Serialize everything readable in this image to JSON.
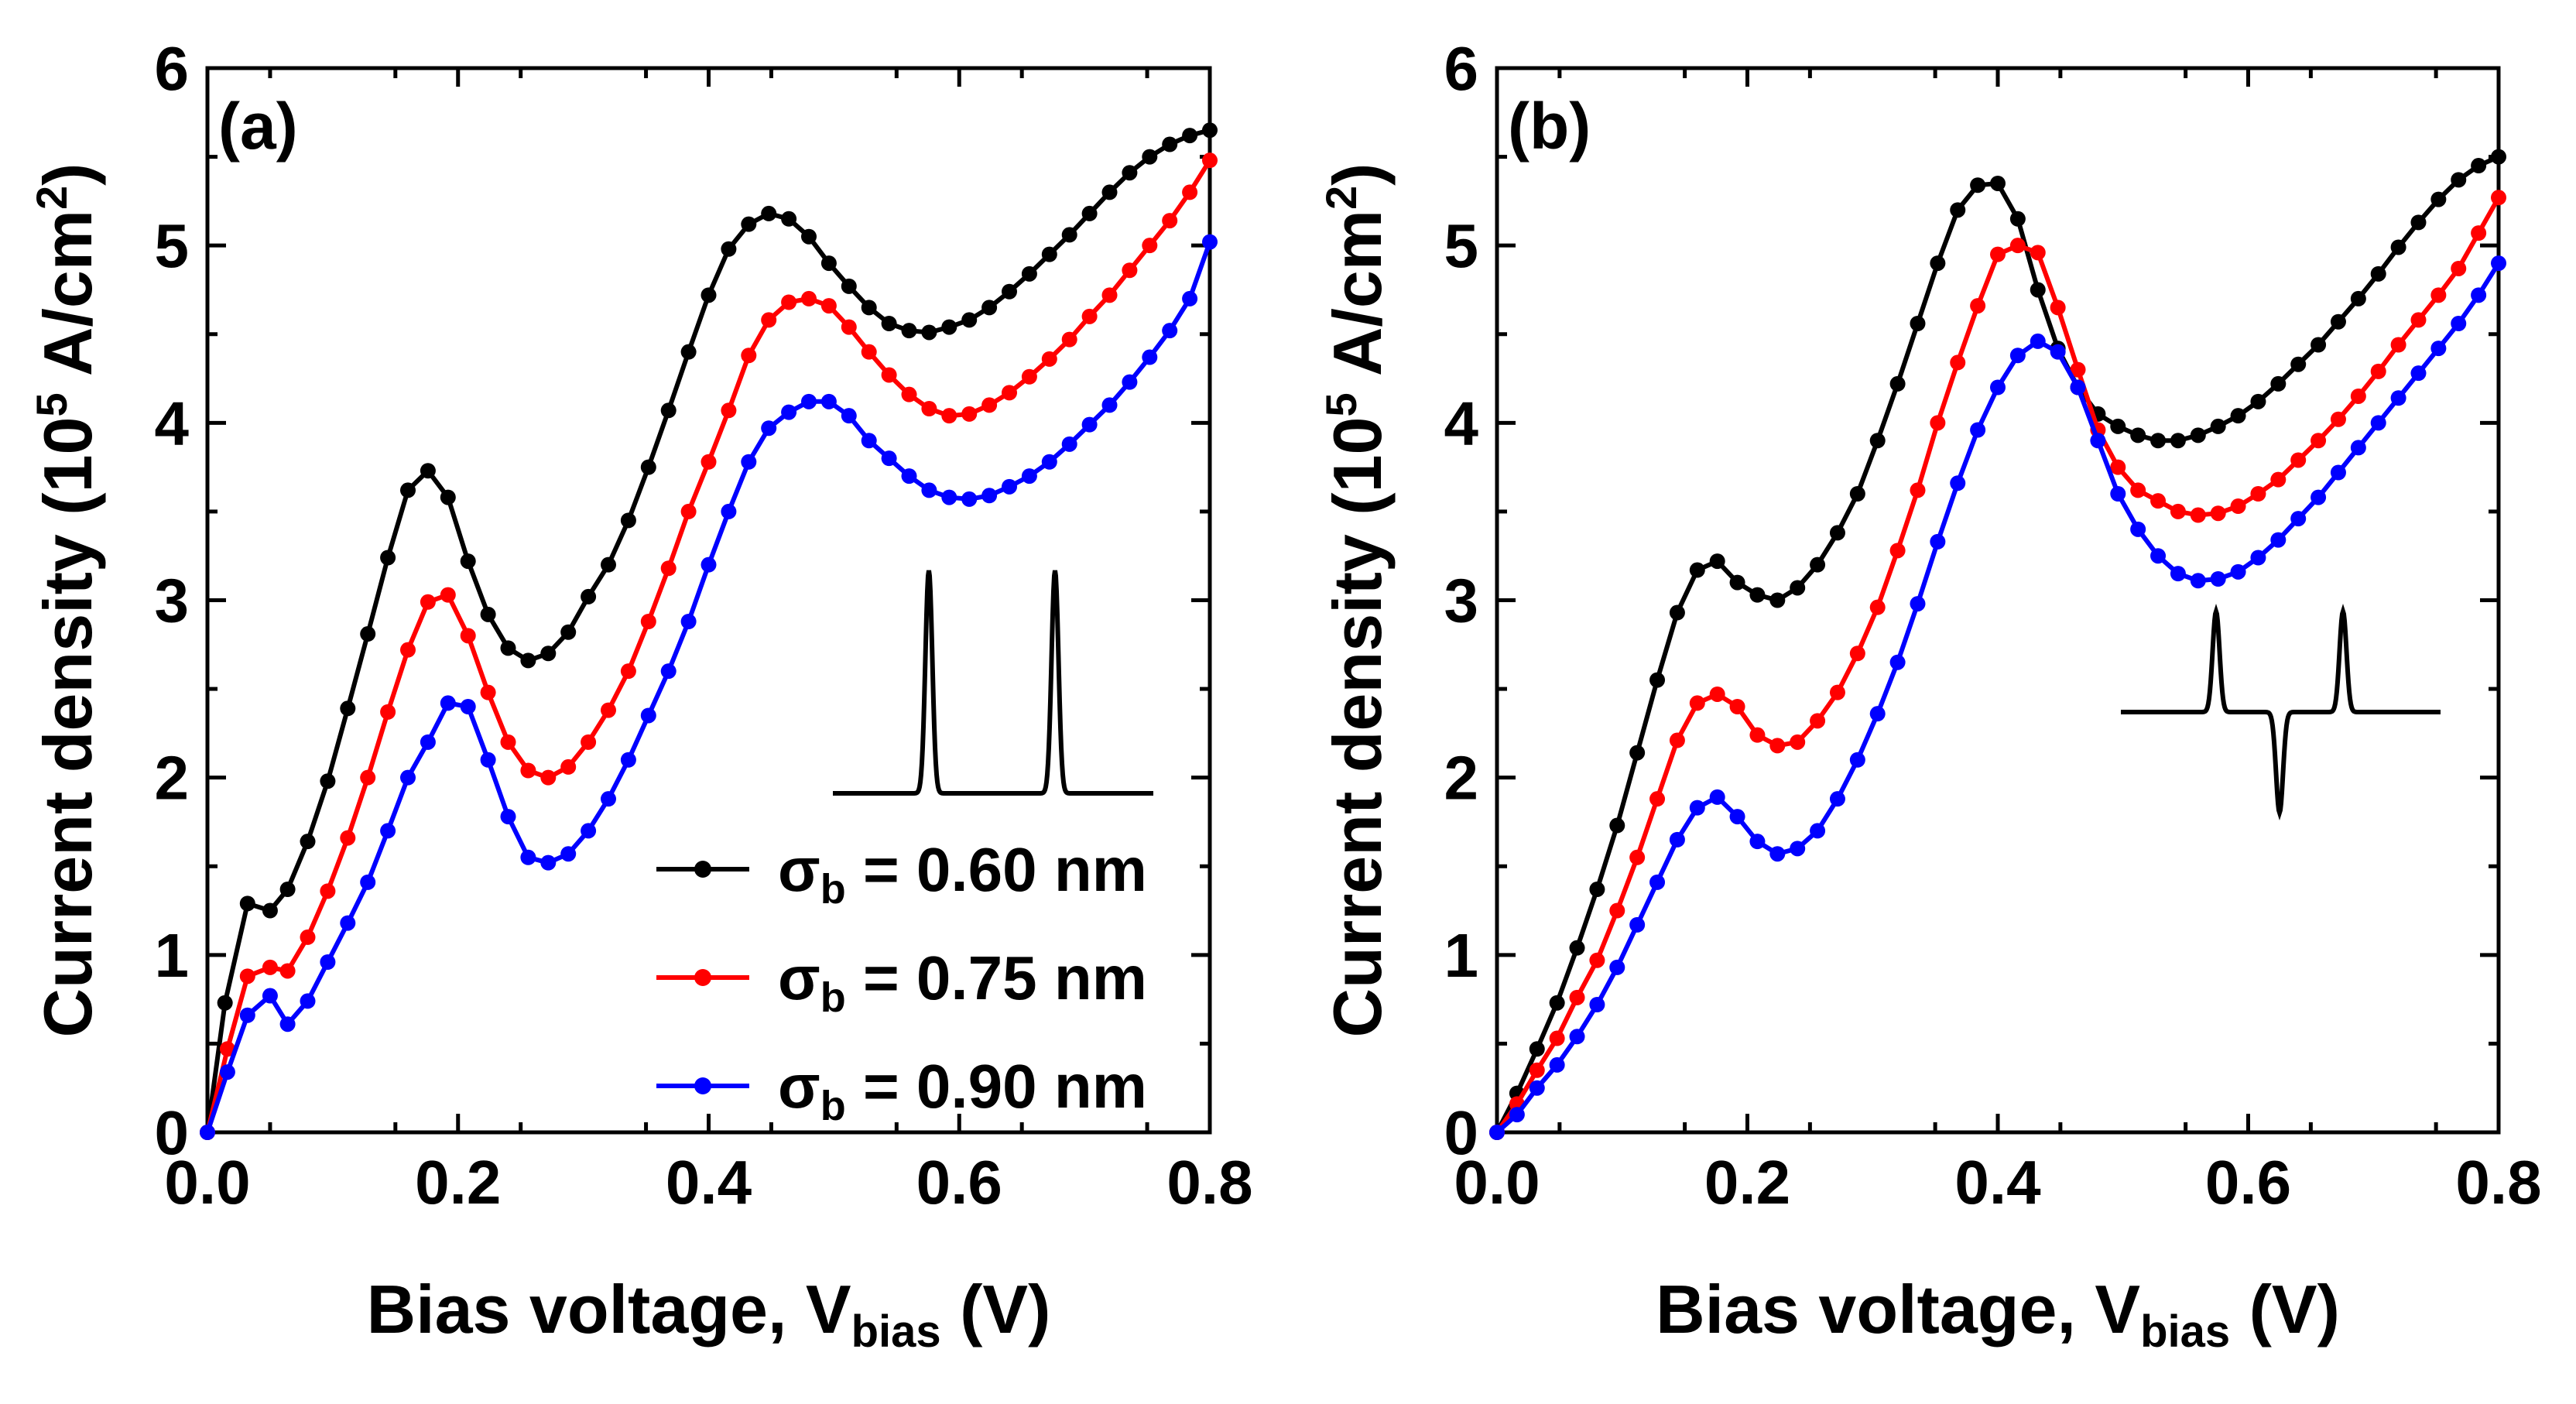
{
  "chart_data": [
    {
      "type": "line",
      "panel_label": "(a)",
      "xlabel": "Bias voltage, V",
      "xlabel_sub": "bias",
      "xlabel_unit": "(V)",
      "ylabel_pre": "Current density (10",
      "ylabel_sup1": "5",
      "ylabel_mid": " A/cm",
      "ylabel_sup2": "2",
      "ylabel_post": ")",
      "xlim": [
        0,
        0.8
      ],
      "ylim": [
        0,
        6
      ],
      "xticks": [
        "0.0",
        "0.2",
        "0.4",
        "0.6",
        "0.8"
      ],
      "yticks": [
        "0",
        "1",
        "2",
        "3",
        "4",
        "5",
        "6"
      ],
      "inset": "two positive Gaussian peaks",
      "series": [
        {
          "name": "σb = 0.60 nm",
          "color": "#000000",
          "x": [
            0,
            0.014,
            0.032,
            0.05,
            0.064,
            0.08,
            0.096,
            0.112,
            0.128,
            0.144,
            0.16,
            0.176,
            0.192,
            0.208,
            0.224,
            0.24,
            0.256,
            0.272,
            0.288,
            0.304,
            0.32,
            0.336,
            0.352,
            0.368,
            0.384,
            0.4,
            0.416,
            0.432,
            0.448,
            0.464,
            0.48,
            0.496,
            0.512,
            0.528,
            0.544,
            0.56,
            0.576,
            0.592,
            0.608,
            0.624,
            0.64,
            0.656,
            0.672,
            0.688,
            0.704,
            0.72,
            0.736,
            0.752,
            0.768,
            0.784,
            0.8
          ],
          "y": [
            0,
            0.73,
            1.29,
            1.25,
            1.37,
            1.64,
            1.98,
            2.39,
            2.81,
            3.24,
            3.62,
            3.73,
            3.58,
            3.22,
            2.92,
            2.73,
            2.66,
            2.7,
            2.82,
            3.02,
            3.2,
            3.45,
            3.75,
            4.07,
            4.4,
            4.72,
            4.98,
            5.12,
            5.18,
            5.15,
            5.05,
            4.9,
            4.77,
            4.65,
            4.56,
            4.52,
            4.51,
            4.54,
            4.58,
            4.65,
            4.74,
            4.84,
            4.95,
            5.06,
            5.18,
            5.3,
            5.41,
            5.5,
            5.57,
            5.62,
            5.65
          ]
        },
        {
          "name": "σb = 0.75 nm",
          "color": "#ff0000",
          "x": [
            0,
            0.016,
            0.032,
            0.05,
            0.064,
            0.08,
            0.096,
            0.112,
            0.128,
            0.144,
            0.16,
            0.176,
            0.192,
            0.208,
            0.224,
            0.24,
            0.256,
            0.272,
            0.288,
            0.304,
            0.32,
            0.336,
            0.352,
            0.368,
            0.384,
            0.4,
            0.416,
            0.432,
            0.448,
            0.464,
            0.48,
            0.496,
            0.512,
            0.528,
            0.544,
            0.56,
            0.576,
            0.592,
            0.608,
            0.624,
            0.64,
            0.656,
            0.672,
            0.688,
            0.704,
            0.72,
            0.736,
            0.752,
            0.768,
            0.784,
            0.8
          ],
          "y": [
            0,
            0.47,
            0.88,
            0.93,
            0.91,
            1.1,
            1.36,
            1.66,
            2.0,
            2.37,
            2.72,
            2.99,
            3.03,
            2.8,
            2.48,
            2.2,
            2.04,
            2.0,
            2.06,
            2.2,
            2.38,
            2.6,
            2.88,
            3.18,
            3.5,
            3.78,
            4.07,
            4.38,
            4.58,
            4.68,
            4.7,
            4.66,
            4.54,
            4.4,
            4.27,
            4.16,
            4.08,
            4.04,
            4.05,
            4.1,
            4.17,
            4.26,
            4.36,
            4.47,
            4.6,
            4.72,
            4.86,
            5.0,
            5.14,
            5.3,
            5.48
          ]
        },
        {
          "name": "σb = 0.90 nm",
          "color": "#0000ff",
          "x": [
            0,
            0.016,
            0.032,
            0.05,
            0.064,
            0.08,
            0.096,
            0.112,
            0.128,
            0.144,
            0.16,
            0.176,
            0.192,
            0.208,
            0.224,
            0.24,
            0.256,
            0.272,
            0.288,
            0.304,
            0.32,
            0.336,
            0.352,
            0.368,
            0.384,
            0.4,
            0.416,
            0.432,
            0.448,
            0.464,
            0.48,
            0.496,
            0.512,
            0.528,
            0.544,
            0.56,
            0.576,
            0.592,
            0.608,
            0.624,
            0.64,
            0.656,
            0.672,
            0.688,
            0.704,
            0.72,
            0.736,
            0.752,
            0.768,
            0.784,
            0.8
          ],
          "y": [
            0,
            0.34,
            0.66,
            0.77,
            0.61,
            0.74,
            0.96,
            1.18,
            1.41,
            1.7,
            2.0,
            2.2,
            2.42,
            2.4,
            2.1,
            1.78,
            1.55,
            1.52,
            1.57,
            1.7,
            1.88,
            2.1,
            2.35,
            2.6,
            2.88,
            3.2,
            3.5,
            3.78,
            3.97,
            4.06,
            4.12,
            4.12,
            4.04,
            3.9,
            3.8,
            3.7,
            3.62,
            3.58,
            3.57,
            3.59,
            3.64,
            3.7,
            3.78,
            3.88,
            3.99,
            4.1,
            4.23,
            4.37,
            4.52,
            4.7,
            5.02
          ]
        }
      ]
    },
    {
      "type": "line",
      "panel_label": "(b)",
      "xlabel": "Bias voltage, V",
      "xlabel_sub": "bias",
      "xlabel_unit": "(V)",
      "ylabel_pre": "Current density (10",
      "ylabel_sup1": "5",
      "ylabel_mid": " A/cm",
      "ylabel_sup2": "2",
      "ylabel_post": ")",
      "xlim": [
        0,
        0.8
      ],
      "ylim": [
        0,
        6
      ],
      "xticks": [
        "0.0",
        "0.2",
        "0.4",
        "0.6",
        "0.8"
      ],
      "yticks": [
        "0",
        "1",
        "2",
        "3",
        "4",
        "5",
        "6"
      ],
      "inset": "positive peak, negative dip, positive peak",
      "series": [
        {
          "name": "σb = 0.60 nm",
          "color": "#000000",
          "x": [
            0,
            0.016,
            0.032,
            0.048,
            0.064,
            0.08,
            0.096,
            0.112,
            0.128,
            0.144,
            0.16,
            0.176,
            0.192,
            0.208,
            0.224,
            0.24,
            0.256,
            0.272,
            0.288,
            0.304,
            0.32,
            0.336,
            0.352,
            0.368,
            0.384,
            0.4,
            0.416,
            0.432,
            0.448,
            0.464,
            0.48,
            0.496,
            0.512,
            0.528,
            0.544,
            0.56,
            0.576,
            0.592,
            0.608,
            0.624,
            0.64,
            0.656,
            0.672,
            0.688,
            0.704,
            0.72,
            0.736,
            0.752,
            0.768,
            0.784,
            0.8
          ],
          "y": [
            0,
            0.22,
            0.47,
            0.73,
            1.04,
            1.37,
            1.73,
            2.14,
            2.55,
            2.93,
            3.17,
            3.22,
            3.1,
            3.03,
            3.0,
            3.07,
            3.2,
            3.38,
            3.6,
            3.9,
            4.22,
            4.56,
            4.9,
            5.2,
            5.34,
            5.35,
            5.15,
            4.75,
            4.42,
            4.2,
            4.05,
            3.98,
            3.93,
            3.9,
            3.9,
            3.93,
            3.98,
            4.04,
            4.12,
            4.22,
            4.33,
            4.44,
            4.57,
            4.7,
            4.84,
            4.99,
            5.13,
            5.26,
            5.37,
            5.45,
            5.5
          ]
        },
        {
          "name": "σb = 0.75 nm",
          "color": "#ff0000",
          "x": [
            0,
            0.016,
            0.032,
            0.048,
            0.064,
            0.08,
            0.096,
            0.112,
            0.128,
            0.144,
            0.16,
            0.176,
            0.192,
            0.208,
            0.224,
            0.24,
            0.256,
            0.272,
            0.288,
            0.304,
            0.32,
            0.336,
            0.352,
            0.368,
            0.384,
            0.4,
            0.416,
            0.432,
            0.448,
            0.464,
            0.48,
            0.496,
            0.512,
            0.528,
            0.544,
            0.56,
            0.576,
            0.592,
            0.608,
            0.624,
            0.64,
            0.656,
            0.672,
            0.688,
            0.704,
            0.72,
            0.736,
            0.752,
            0.768,
            0.784,
            0.8
          ],
          "y": [
            0,
            0.16,
            0.35,
            0.53,
            0.76,
            0.97,
            1.25,
            1.55,
            1.88,
            2.21,
            2.42,
            2.47,
            2.4,
            2.24,
            2.18,
            2.2,
            2.32,
            2.48,
            2.7,
            2.96,
            3.28,
            3.62,
            4.0,
            4.34,
            4.66,
            4.95,
            5.0,
            4.96,
            4.65,
            4.3,
            3.96,
            3.75,
            3.62,
            3.56,
            3.5,
            3.48,
            3.49,
            3.53,
            3.6,
            3.68,
            3.79,
            3.9,
            4.02,
            4.15,
            4.29,
            4.44,
            4.58,
            4.72,
            4.87,
            5.07,
            5.27
          ]
        },
        {
          "name": "σb = 0.90 nm",
          "color": "#0000ff",
          "x": [
            0,
            0.016,
            0.032,
            0.048,
            0.064,
            0.08,
            0.096,
            0.112,
            0.128,
            0.144,
            0.16,
            0.176,
            0.192,
            0.208,
            0.224,
            0.24,
            0.256,
            0.272,
            0.288,
            0.304,
            0.32,
            0.336,
            0.352,
            0.368,
            0.384,
            0.4,
            0.416,
            0.432,
            0.448,
            0.464,
            0.48,
            0.496,
            0.512,
            0.528,
            0.544,
            0.56,
            0.576,
            0.592,
            0.608,
            0.624,
            0.64,
            0.656,
            0.672,
            0.688,
            0.704,
            0.72,
            0.736,
            0.752,
            0.768,
            0.784,
            0.8
          ],
          "y": [
            0,
            0.1,
            0.25,
            0.38,
            0.54,
            0.72,
            0.93,
            1.17,
            1.41,
            1.65,
            1.83,
            1.89,
            1.78,
            1.64,
            1.57,
            1.6,
            1.7,
            1.88,
            2.1,
            2.36,
            2.65,
            2.98,
            3.33,
            3.66,
            3.96,
            4.2,
            4.38,
            4.46,
            4.4,
            4.2,
            3.9,
            3.6,
            3.4,
            3.25,
            3.15,
            3.11,
            3.12,
            3.16,
            3.24,
            3.34,
            3.46,
            3.58,
            3.72,
            3.86,
            4.0,
            4.14,
            4.28,
            4.42,
            4.56,
            4.72,
            4.9
          ]
        }
      ]
    }
  ],
  "legend": {
    "items": [
      {
        "sigma": "σ",
        "sub": "b",
        "value": " = 0.60 nm",
        "color": "#000000"
      },
      {
        "sigma": "σ",
        "sub": "b",
        "value": " = 0.75 nm",
        "color": "#ff0000"
      },
      {
        "sigma": "σ",
        "sub": "b",
        "value": " = 0.90 nm",
        "color": "#0000ff"
      }
    ]
  }
}
